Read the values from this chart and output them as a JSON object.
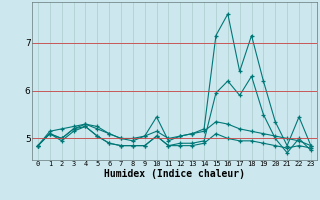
{
  "xlabel": "Humidex (Indice chaleur)",
  "ylabel": "",
  "background_color": "#cce8ee",
  "grid_color": "#aacccc",
  "line_color": "#007777",
  "red_line_color": "#cc4444",
  "xlim": [
    -0.5,
    23.5
  ],
  "ylim": [
    4.55,
    7.85
  ],
  "yticks": [
    5,
    6,
    7
  ],
  "xticks": [
    0,
    1,
    2,
    3,
    4,
    5,
    6,
    7,
    8,
    9,
    10,
    11,
    12,
    13,
    14,
    15,
    16,
    17,
    18,
    19,
    20,
    21,
    22,
    23
  ],
  "series": [
    [
      4.85,
      5.15,
      5.2,
      5.25,
      5.3,
      5.2,
      5.1,
      5.0,
      4.95,
      5.05,
      5.45,
      4.95,
      5.05,
      5.1,
      5.2,
      7.15,
      7.6,
      6.4,
      7.15,
      6.2,
      5.35,
      4.85,
      5.45,
      4.85
    ],
    [
      4.85,
      5.1,
      5.0,
      5.2,
      5.25,
      5.05,
      4.9,
      4.85,
      4.85,
      4.85,
      5.05,
      4.85,
      4.9,
      4.9,
      4.95,
      5.95,
      6.2,
      5.9,
      6.3,
      5.5,
      5.0,
      4.7,
      5.0,
      4.75
    ],
    [
      4.85,
      5.1,
      5.0,
      5.2,
      5.3,
      5.25,
      5.1,
      5.0,
      5.0,
      5.05,
      5.15,
      5.0,
      5.05,
      5.1,
      5.15,
      5.35,
      5.3,
      5.2,
      5.15,
      5.1,
      5.05,
      5.0,
      4.95,
      4.85
    ],
    [
      4.85,
      5.1,
      4.95,
      5.15,
      5.25,
      5.05,
      4.9,
      4.85,
      4.85,
      4.85,
      5.05,
      4.85,
      4.85,
      4.85,
      4.9,
      5.1,
      5.0,
      4.95,
      4.95,
      4.9,
      4.85,
      4.8,
      4.85,
      4.8
    ]
  ]
}
